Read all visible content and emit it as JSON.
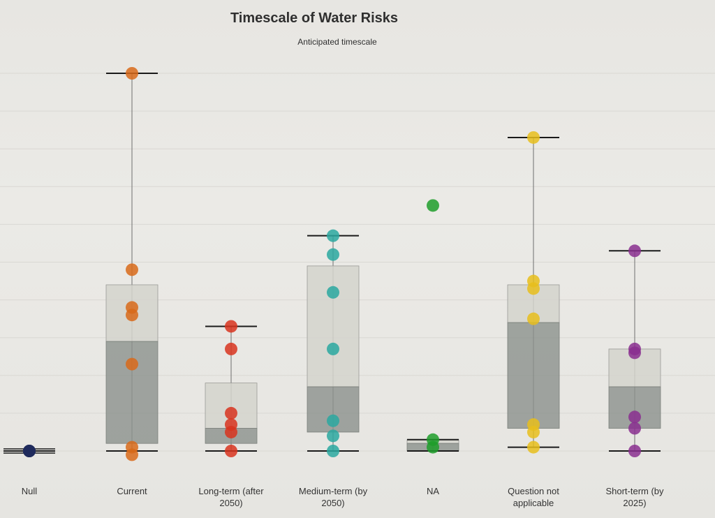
{
  "chart_data": {
    "type": "box",
    "title": "Timescale of Water Risks",
    "subtitle": "Anticipated timescale",
    "xlabel": "",
    "ylabel": "",
    "ylim": [
      0,
      100
    ],
    "grid": true,
    "categories": [
      {
        "label": "Null",
        "color": "#1f2a5c",
        "box": null,
        "whisker": [
          0,
          0
        ],
        "points": [
          0,
          0,
          0
        ]
      },
      {
        "label": "Current",
        "color": "#d86a1a",
        "box": {
          "q1": 2,
          "median": 29,
          "q3": 44
        },
        "whisker": [
          0,
          100
        ],
        "points": [
          100,
          48,
          38,
          36,
          23,
          1,
          -1
        ]
      },
      {
        "label": "Long-term (after 2050)",
        "color": "#d8341e",
        "box": {
          "q1": 2,
          "median": 6,
          "q3": 18
        },
        "whisker": [
          0,
          33
        ],
        "points": [
          33,
          27,
          10,
          7,
          5,
          0
        ]
      },
      {
        "label": "Medium-term (by 2050)",
        "color": "#2aa8a0",
        "box": {
          "q1": 5,
          "median": 17,
          "q3": 49
        },
        "whisker": [
          0,
          57
        ],
        "points": [
          57,
          52,
          42,
          27,
          8,
          4,
          0
        ]
      },
      {
        "label": "NA",
        "color": "#1f9e2a",
        "box": {
          "q1": 0,
          "median": 2,
          "q3": 3
        },
        "whisker": [
          0,
          3
        ],
        "points": [
          65,
          3,
          1
        ]
      },
      {
        "label": "Question not applicable",
        "color": "#e8be1c",
        "box": {
          "q1": 6,
          "median": 34,
          "q3": 44
        },
        "whisker": [
          1,
          83
        ],
        "points": [
          83,
          45,
          43,
          35,
          7,
          5,
          1
        ]
      },
      {
        "label": "Short-term (by 2025)",
        "color": "#8a2f8f",
        "box": {
          "q1": 6,
          "median": 17,
          "q3": 27
        },
        "whisker": [
          0,
          53
        ],
        "points": [
          53,
          27,
          26,
          9,
          6,
          0
        ]
      }
    ]
  }
}
